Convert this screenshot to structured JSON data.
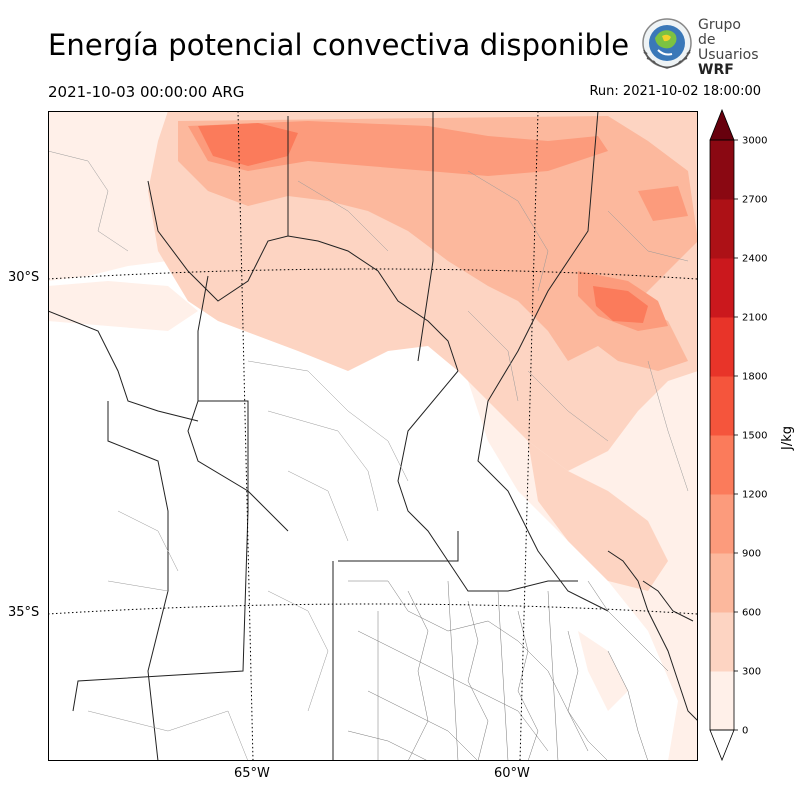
{
  "header": {
    "title": "Energía potencial convectiva disponible",
    "valid_time": "2021-10-03 00:00:00 ARG",
    "run_time": "Run: 2021-10-02 18:00:00"
  },
  "logo": {
    "line1": "Grupo de",
    "line2": "Usuarios",
    "line3": "WRF"
  },
  "map": {
    "latitude_labels": [
      "30°S",
      "35°S"
    ],
    "longitude_labels": [
      "65°W",
      "60°W"
    ]
  },
  "colorbar": {
    "unit_label": "J/kg",
    "ticks": [
      "0",
      "300",
      "600",
      "900",
      "1200",
      "1500",
      "1800",
      "2100",
      "2400",
      "2700",
      "3000"
    ],
    "colors": [
      "#fff0e9",
      "#fdd4c2",
      "#fcb89d",
      "#fc9b7c",
      "#fb7b5b",
      "#f5553c",
      "#e83429",
      "#cb181d",
      "#ad1116",
      "#8a0812",
      "#67000d"
    ]
  }
}
